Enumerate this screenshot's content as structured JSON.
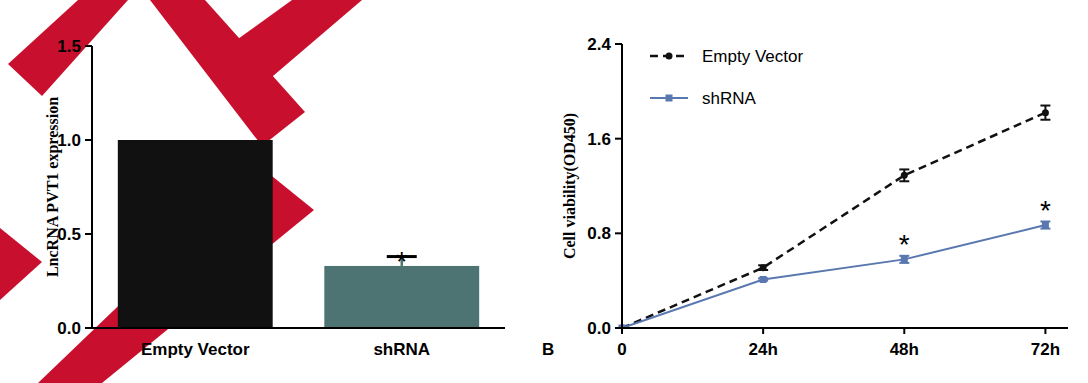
{
  "chart_data": [
    {
      "type": "bar",
      "y_label": "LncRNA PVT1 expression",
      "categories": [
        "Empty Vector",
        "shRNA"
      ],
      "values": [
        1.0,
        0.33
      ],
      "errors": [
        0,
        0.05
      ],
      "colors": [
        "#111111",
        "#4d7473"
      ],
      "ylim": [
        0,
        1.5
      ],
      "yticks": [
        {
          "value": 0,
          "label": "0.0"
        },
        {
          "value": 0.5,
          "label": "0.5"
        },
        {
          "value": 1,
          "label": "1.0"
        },
        {
          "value": 1.5,
          "label": "1.5"
        }
      ],
      "annotations": [
        {
          "text": "*",
          "category": "shRNA"
        }
      ]
    },
    {
      "type": "line",
      "panel_label": "B",
      "y_label": "Cell viability(OD450)",
      "categories": [
        "0",
        "24h",
        "48h",
        "72h"
      ],
      "series": [
        {
          "name": "Empty Vector",
          "color": "#111111",
          "marker": "circle",
          "line_style": "dashed",
          "values": [
            0,
            0.51,
            1.29,
            1.82
          ],
          "errors": [
            0,
            0.02,
            0.05,
            0.06
          ]
        },
        {
          "name": "shRNA",
          "color": "#5a78b0",
          "marker": "square",
          "line_style": "solid",
          "values": [
            0,
            0.41,
            0.58,
            0.87
          ],
          "errors": [
            0,
            0.01,
            0.03,
            0.03
          ]
        }
      ],
      "ylim": [
        0,
        2.4
      ],
      "yticks": [
        {
          "value": 0,
          "label": "0.0"
        },
        {
          "value": 0.8,
          "label": "0.8"
        },
        {
          "value": 1.6,
          "label": "1.6"
        },
        {
          "value": 2.4,
          "label": "2.4"
        }
      ],
      "legend": "top-left",
      "annotations": [
        {
          "text": "*",
          "x": "48h",
          "series": "shRNA"
        },
        {
          "text": "*",
          "x": "72h",
          "series": "shRNA"
        }
      ]
    }
  ]
}
